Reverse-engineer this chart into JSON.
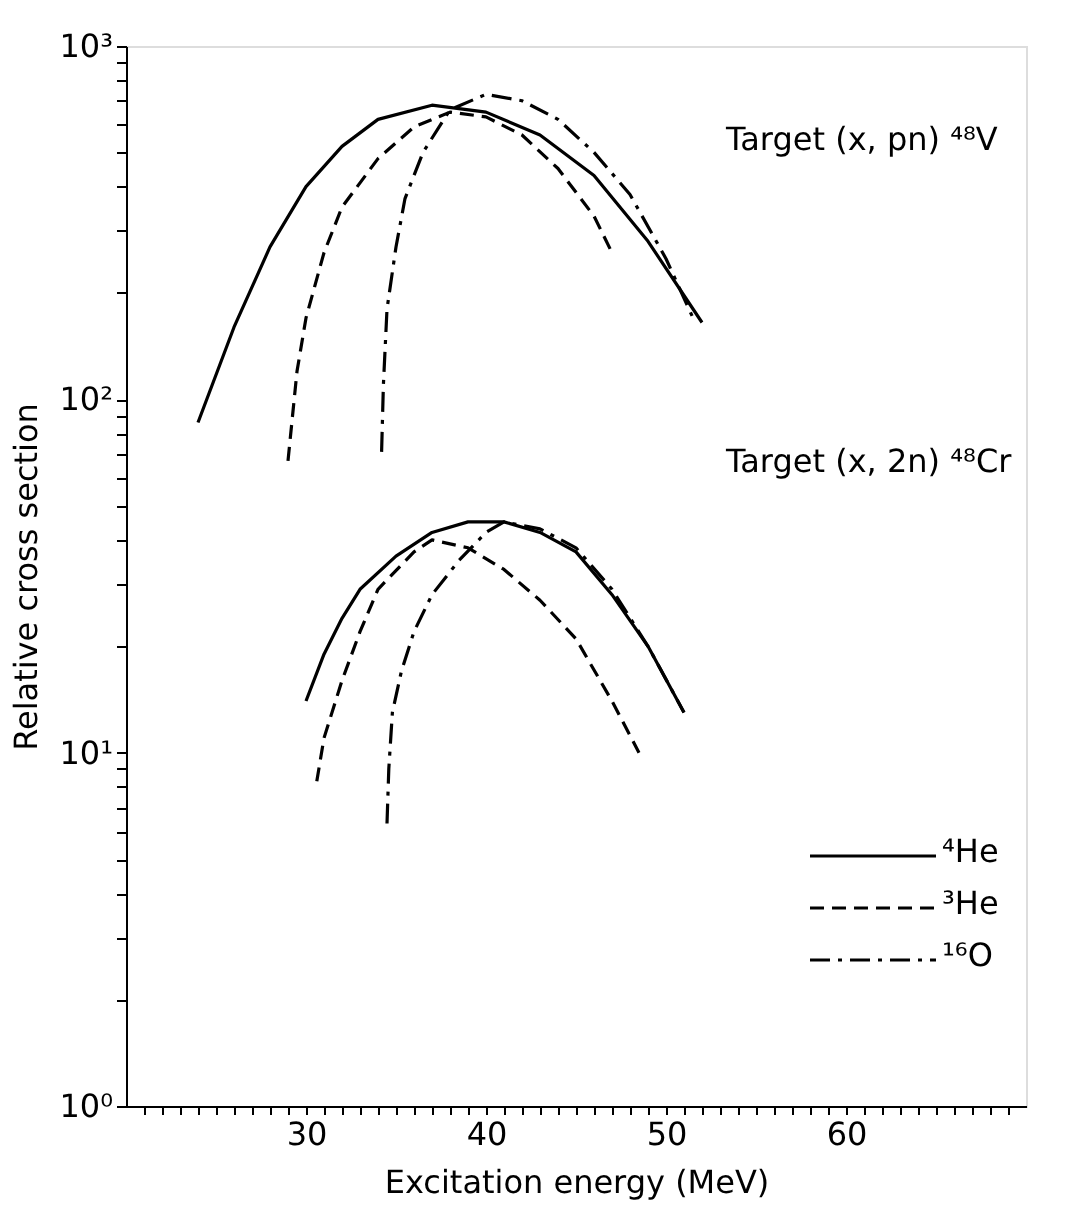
{
  "chart_data": {
    "type": "line",
    "xlabel": "Excitation energy (MeV)",
    "ylabel": "Relative cross section",
    "annotations": [
      "Target (x, pn) ⁴⁸V",
      "Target (x, 2n) ⁴⁸Cr"
    ],
    "log": "y",
    "xlim": [
      20,
      70
    ],
    "ylim": [
      1,
      1000
    ],
    "xticks": [
      {
        "value": 21,
        "label": null
      },
      {
        "value": 22,
        "label": null
      },
      {
        "value": 23,
        "label": null
      },
      {
        "value": 24,
        "label": null
      },
      {
        "value": 25,
        "label": null
      },
      {
        "value": 26,
        "label": null
      },
      {
        "value": 27,
        "label": null
      },
      {
        "value": 28,
        "label": null
      },
      {
        "value": 29,
        "label": null
      },
      30,
      {
        "value": 31,
        "label": null
      },
      {
        "value": 32,
        "label": null
      },
      {
        "value": 33,
        "label": null
      },
      {
        "value": 34,
        "label": null
      },
      {
        "value": 35,
        "label": null
      },
      {
        "value": 36,
        "label": null
      },
      {
        "value": 37,
        "label": null
      },
      {
        "value": 38,
        "label": null
      },
      {
        "value": 39,
        "label": null
      },
      40,
      {
        "value": 41,
        "label": null
      },
      {
        "value": 42,
        "label": null
      },
      {
        "value": 43,
        "label": null
      },
      {
        "value": 44,
        "label": null
      },
      {
        "value": 45,
        "label": null
      },
      {
        "value": 46,
        "label": null
      },
      {
        "value": 47,
        "label": null
      },
      {
        "value": 48,
        "label": null
      },
      {
        "value": 49,
        "label": null
      },
      50,
      {
        "value": 51,
        "label": null
      },
      {
        "value": 52,
        "label": null
      },
      {
        "value": 53,
        "label": null
      },
      {
        "value": 54,
        "label": null
      },
      {
        "value": 55,
        "label": null
      },
      {
        "value": 56,
        "label": null
      },
      {
        "value": 57,
        "label": null
      },
      {
        "value": 58,
        "label": null
      },
      {
        "value": 59,
        "label": null
      },
      60,
      {
        "value": 61,
        "label": null
      },
      {
        "value": 62,
        "label": null
      },
      {
        "value": 63,
        "label": null
      },
      {
        "value": 64,
        "label": null
      },
      {
        "value": 65,
        "label": null
      },
      {
        "value": 66,
        "label": null
      },
      {
        "value": 67,
        "label": null
      },
      {
        "value": 68,
        "label": null
      },
      {
        "value": 69,
        "label": null
      }
    ],
    "yticks": [
      {
        "value": 1,
        "label": "10⁰"
      },
      {
        "value": 2,
        "label": null
      },
      {
        "value": 3,
        "label": null
      },
      {
        "value": 4,
        "label": null
      },
      {
        "value": 5,
        "label": null
      },
      {
        "value": 6,
        "label": null
      },
      {
        "value": 7,
        "label": null
      },
      {
        "value": 8,
        "label": null
      },
      {
        "value": 9,
        "label": null
      },
      {
        "value": 10,
        "label": "10¹"
      },
      {
        "value": 20,
        "label": null
      },
      {
        "value": 30,
        "label": null
      },
      {
        "value": 40,
        "label": null
      },
      {
        "value": 50,
        "label": null
      },
      {
        "value": 60,
        "label": null
      },
      {
        "value": 70,
        "label": null
      },
      {
        "value": 80,
        "label": null
      },
      {
        "value": 90,
        "label": null
      },
      {
        "value": 100,
        "label": "10²"
      },
      {
        "value": 200,
        "label": null
      },
      {
        "value": 300,
        "label": null
      },
      {
        "value": 400,
        "label": null
      },
      {
        "value": 500,
        "label": null
      },
      {
        "value": 600,
        "label": null
      },
      {
        "value": 700,
        "label": null
      },
      {
        "value": 800,
        "label": null
      },
      {
        "value": 900,
        "label": null
      },
      {
        "value": 1000,
        "label": "10³"
      }
    ],
    "grid": false,
    "legend": "bottom right",
    "marker": "none",
    "series": [
      {
        "name": "⁴He",
        "color": "#000000",
        "line_style": "solid",
        "x": [
          24,
          26,
          28,
          30,
          32,
          34,
          37,
          40,
          43,
          46,
          49,
          52
        ],
        "values": [
          86,
          160,
          270,
          400,
          520,
          620,
          680,
          650,
          560,
          430,
          280,
          165
        ]
      },
      {
        "name": "³He",
        "color": "#000000",
        "line_style": "dashed",
        "x": [
          29,
          29.5,
          30,
          31,
          32,
          34,
          36,
          38,
          40,
          42,
          44,
          46,
          47
        ],
        "values": [
          67,
          120,
          170,
          260,
          350,
          480,
          590,
          650,
          630,
          560,
          450,
          330,
          260
        ]
      },
      {
        "name": "¹⁶O",
        "color": "#000000",
        "line_style": "dashdot",
        "x": [
          34.2,
          34.3,
          34.5,
          35,
          35.5,
          36.5,
          38,
          40,
          42,
          44,
          46,
          48,
          50,
          51.5
        ],
        "values": [
          71,
          110,
          180,
          270,
          370,
          500,
          660,
          730,
          700,
          620,
          500,
          380,
          250,
          170
        ]
      },
      {
        "color": "#000000",
        "line_style": "solid",
        "x": [
          30,
          31,
          32,
          33,
          35,
          37,
          39,
          41,
          43,
          45,
          47,
          49,
          51
        ],
        "values": [
          14,
          19,
          24,
          29,
          36,
          42,
          45,
          45,
          42,
          37,
          28,
          20,
          13
        ]
      },
      {
        "color": "#000000",
        "line_style": "dashed",
        "x": [
          30.6,
          31,
          32,
          33,
          34,
          36,
          37,
          39,
          41,
          43,
          45,
          47,
          48.5
        ],
        "values": [
          8.3,
          11,
          16,
          22,
          29,
          37,
          40,
          38,
          33,
          27,
          21,
          14,
          10
        ]
      },
      {
        "color": "#000000",
        "line_style": "dashdot",
        "x": [
          34.5,
          34.6,
          34.8,
          35.3,
          36,
          37,
          38.5,
          40,
          41,
          43,
          45,
          47,
          49,
          51
        ],
        "values": [
          6.3,
          9,
          13,
          17,
          22,
          28,
          35,
          42,
          45,
          43,
          38,
          29,
          20,
          13
        ]
      }
    ]
  }
}
